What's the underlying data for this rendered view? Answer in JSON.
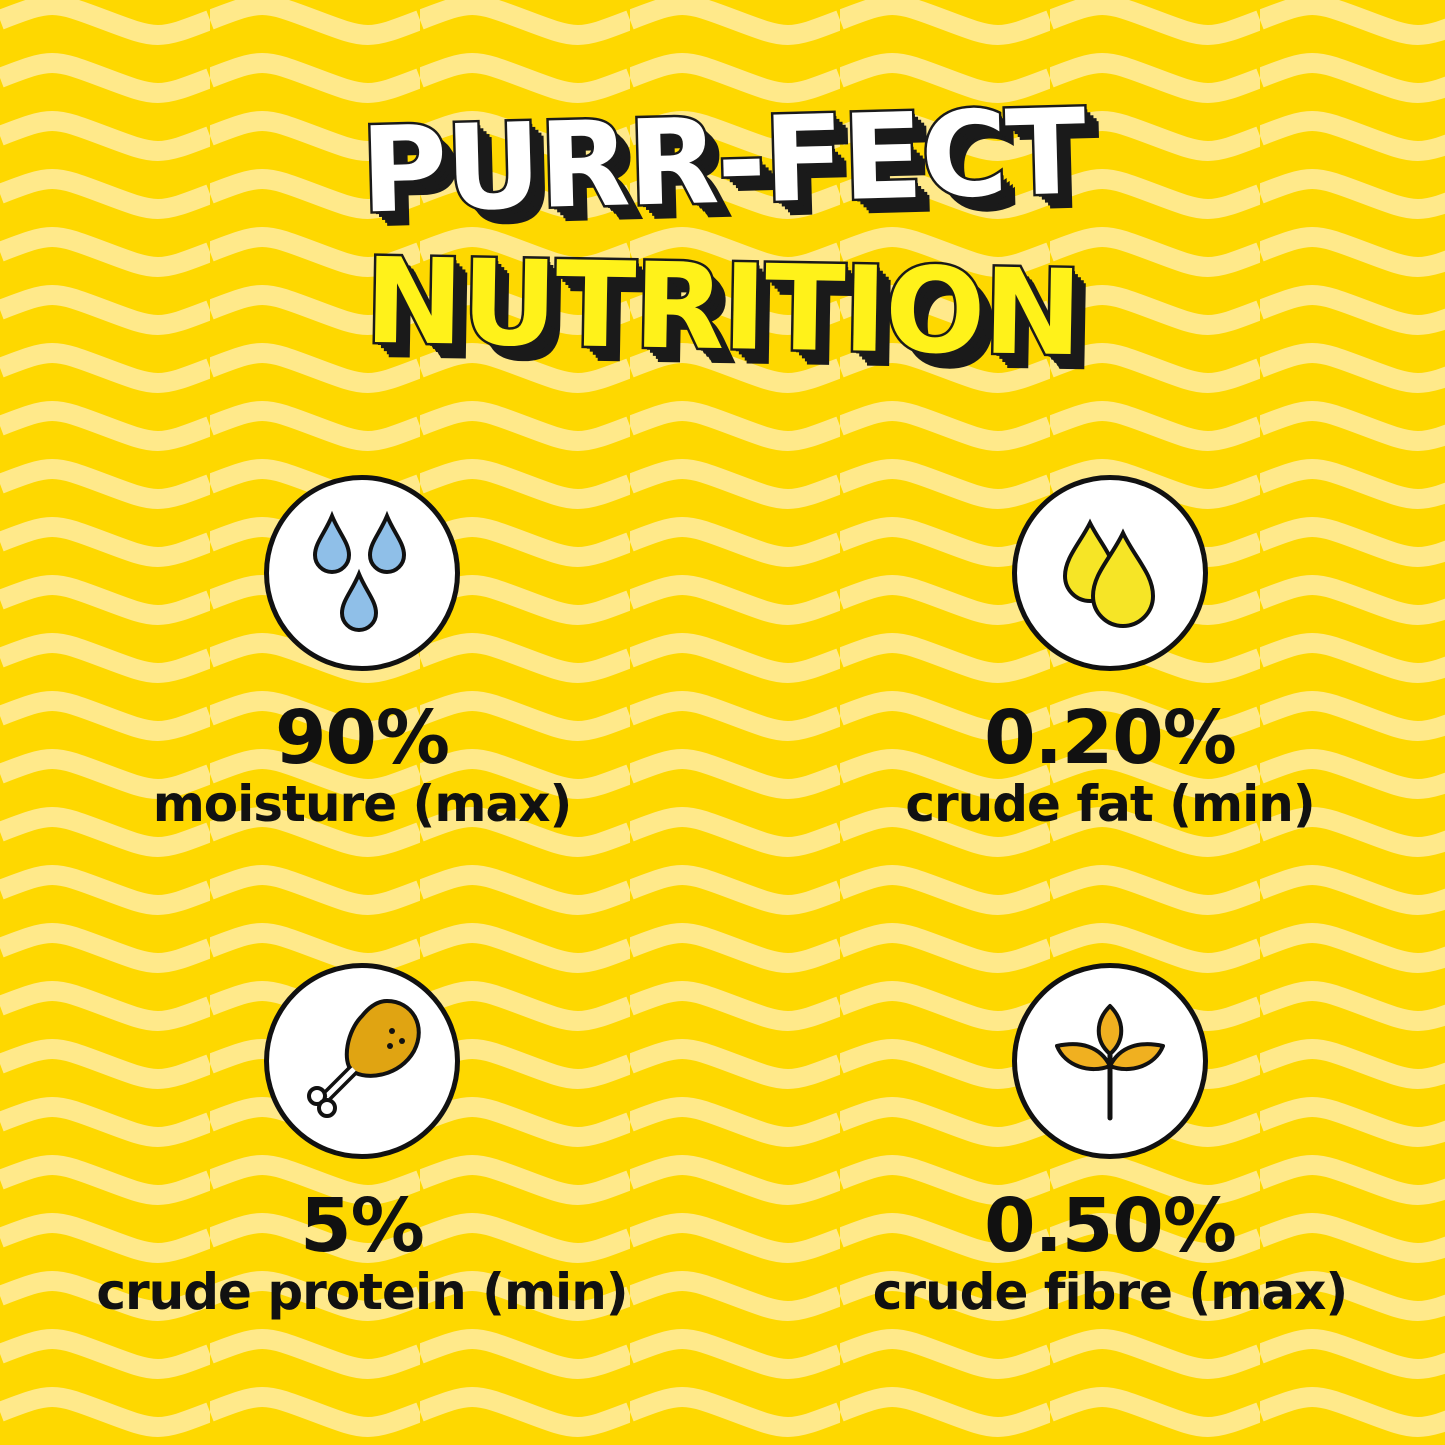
{
  "title": {
    "line1": "PURR-FECT",
    "line2": "NUTRITION"
  },
  "colors": {
    "background": "#fed800",
    "wave": "#ffe98a",
    "text": "#111111",
    "water": "#8fbfe8",
    "fat": "#f6e526",
    "protein": "#e0a412",
    "fibre": "#f0b020"
  },
  "items": [
    {
      "icon": "water-drops-icon",
      "value": "90%",
      "label": "moisture (max)"
    },
    {
      "icon": "oil-drops-icon",
      "value": "0.20%",
      "label": "crude fat (min)"
    },
    {
      "icon": "chicken-leg-icon",
      "value": "5%",
      "label": "crude protein (min)"
    },
    {
      "icon": "wheat-sprout-icon",
      "value": "0.50%",
      "label": "crude fibre (max)"
    }
  ]
}
